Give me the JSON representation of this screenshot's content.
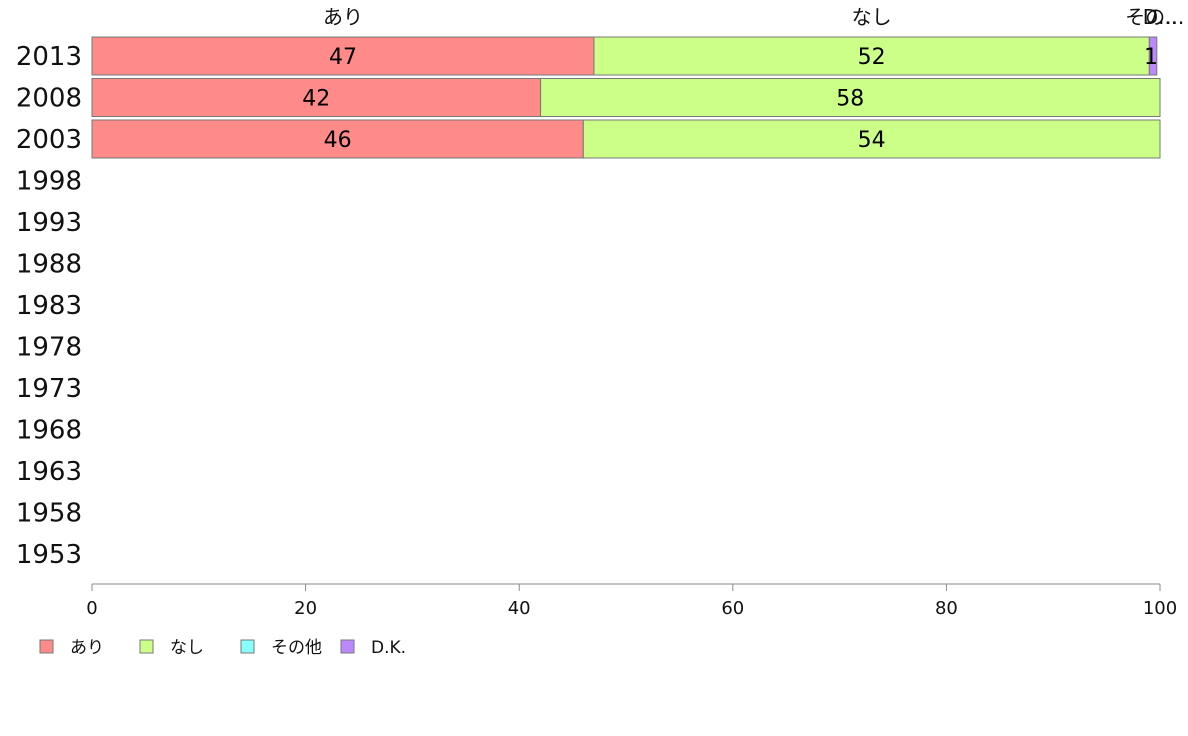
{
  "chart_data": {
    "type": "bar",
    "orientation": "horizontal",
    "stacked": true,
    "categories": [
      "2013",
      "2008",
      "2003",
      "1998",
      "1993",
      "1988",
      "1983",
      "1978",
      "1973",
      "1968",
      "1963",
      "1958",
      "1953"
    ],
    "series": [
      {
        "name": "あり",
        "color": "#ff8a8a",
        "values": [
          47,
          42,
          46,
          null,
          null,
          null,
          null,
          null,
          null,
          null,
          null,
          null,
          null
        ],
        "labels": [
          "47",
          "42",
          "46",
          "",
          "",
          "",
          "",
          "",
          "",
          "",
          "",
          "",
          ""
        ]
      },
      {
        "name": "なし",
        "color": "#ccff88",
        "values": [
          52,
          58,
          54,
          null,
          null,
          null,
          null,
          null,
          null,
          null,
          null,
          null,
          null
        ],
        "labels": [
          "52",
          "58",
          "54",
          "",
          "",
          "",
          "",
          "",
          "",
          "",
          "",
          "",
          ""
        ]
      },
      {
        "name": "その他",
        "color": "#88ffff",
        "values": [
          0,
          0,
          0,
          null,
          null,
          null,
          null,
          null,
          null,
          null,
          null,
          null,
          null
        ],
        "labels": [
          "",
          "",
          "",
          "",
          "",
          "",
          "",
          "",
          "",
          "",
          "",
          "",
          ""
        ]
      },
      {
        "name": "D.K.",
        "color": "#bb88ff",
        "values": [
          0.7,
          0,
          0,
          null,
          null,
          null,
          null,
          null,
          null,
          null,
          null,
          null,
          null
        ],
        "labels": [
          "1",
          "",
          "",
          "",
          "",
          "",
          "",
          "",
          "",
          "",
          "",
          "",
          ""
        ]
      }
    ],
    "top_labels": [
      {
        "text": "あり",
        "x": 23.5
      },
      {
        "text": "なし",
        "x": 73
      },
      {
        "text": "その...",
        "x": 99.5
      },
      {
        "text": "D...",
        "x": 100
      }
    ],
    "xlim": [
      0,
      100
    ],
    "xticks": [
      "0",
      "20",
      "40",
      "60",
      "80",
      "100"
    ],
    "legend": {
      "position": "bottom-left",
      "items": [
        {
          "label": "あり",
          "color": "#ff8a8a"
        },
        {
          "label": "なし",
          "color": "#ccff88"
        },
        {
          "label": "その他",
          "color": "#88ffff"
        },
        {
          "label": "D.K.",
          "color": "#bb88ff"
        }
      ]
    },
    "grid": false
  }
}
